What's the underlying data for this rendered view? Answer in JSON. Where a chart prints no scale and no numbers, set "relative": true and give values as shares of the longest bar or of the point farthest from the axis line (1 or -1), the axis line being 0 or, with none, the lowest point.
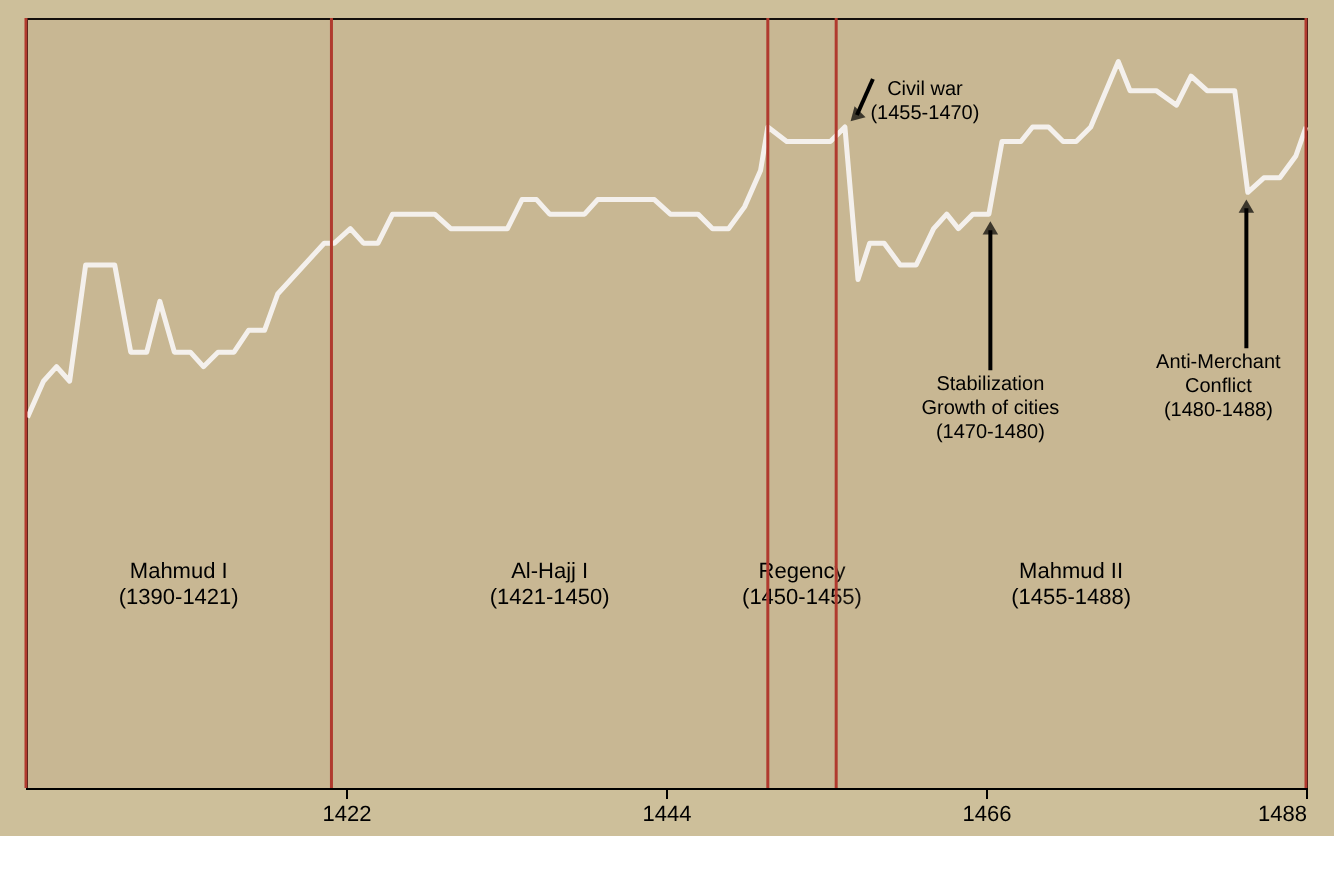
{
  "chart_data": {
    "type": "line",
    "relative": true,
    "x": [
      1400.1,
      1401.2,
      1402.1,
      1403.0,
      1404.1,
      1406.1,
      1407.2,
      1408.3,
      1409.2,
      1410.2,
      1411.3,
      1412.2,
      1413.2,
      1414.3,
      1415.3,
      1416.4,
      1417.3,
      1420.5,
      1421.2,
      1422.3,
      1423.2,
      1424.2,
      1425.2,
      1428.1,
      1429.2,
      1433.1,
      1434.1,
      1435.1,
      1436.0,
      1438.4,
      1439.3,
      1443.2,
      1444.3,
      1446.2,
      1447.2,
      1448.3,
      1449.4,
      1450.5,
      1451.0,
      1452.3,
      1455.3,
      1456.3,
      1457.2,
      1458.0,
      1459.0,
      1460.1,
      1461.2,
      1462.4,
      1463.3,
      1464.1,
      1465.1,
      1466.2,
      1467.1,
      1468.4,
      1469.2,
      1470.3,
      1471.3,
      1472.2,
      1473.2,
      1475.1,
      1475.9,
      1477.7,
      1479.1,
      1480.1,
      1481.2,
      1483.1,
      1484.0,
      1485.1,
      1486.2,
      1487.3,
      1488.0
    ],
    "series": [
      {
        "color": "#ffffff",
        "values": [
          0.51,
          0.56,
          0.58,
          0.56,
          0.72,
          0.72,
          0.6,
          0.6,
          0.67,
          0.6,
          0.6,
          0.58,
          0.6,
          0.6,
          0.63,
          0.63,
          0.68,
          0.75,
          0.75,
          0.77,
          0.75,
          0.75,
          0.79,
          0.79,
          0.77,
          0.77,
          0.81,
          0.81,
          0.79,
          0.79,
          0.81,
          0.81,
          0.79,
          0.79,
          0.77,
          0.77,
          0.8,
          0.85,
          0.91,
          0.89,
          0.89,
          0.91,
          0.7,
          0.75,
          0.75,
          0.72,
          0.72,
          0.77,
          0.79,
          0.77,
          0.79,
          0.79,
          0.89,
          0.89,
          0.91,
          0.91,
          0.89,
          0.89,
          0.91,
          1.0,
          0.96,
          0.96,
          0.94,
          0.98,
          0.96,
          0.96,
          0.82,
          0.84,
          0.84,
          0.87,
          0.91
        ]
      }
    ],
    "xlim": [
      1400,
      1488
    ],
    "xticks": [
      1422,
      1444,
      1466,
      1488
    ],
    "tick_labels": "x",
    "grid": false,
    "marker": "none",
    "line_style": "solid",
    "ref_lines": [
      {
        "axis": "x",
        "value": 1400,
        "color": "#b03a2e"
      },
      {
        "axis": "x",
        "value": 1421,
        "color": "#b03a2e"
      },
      {
        "axis": "x",
        "value": 1451,
        "color": "#b03a2e"
      },
      {
        "axis": "x",
        "value": 1455.7,
        "color": "#b03a2e"
      },
      {
        "axis": "x",
        "value": 1488,
        "color": "#b03a2e"
      }
    ],
    "bands": [
      {
        "axis": "x",
        "from": 1400,
        "to": 1421,
        "label": "Mahmud I\n(1390-1421)"
      },
      {
        "axis": "x",
        "from": 1421,
        "to": 1451,
        "label": "Al-Hajj I\n(1421-1450)"
      },
      {
        "axis": "x",
        "from": 1451,
        "to": 1455.7,
        "label": "Regency\n(1450-1455)"
      },
      {
        "axis": "x",
        "from": 1455.7,
        "to": 1488,
        "label": "Mahmud II\n(1455-1488)"
      }
    ],
    "annotations": [
      {
        "text": "Civil war\n(1455-1470)",
        "x": 1456.3,
        "y": 0.91
      },
      {
        "text": "Stabilization\nGrowth of cities\n(1470-1480)",
        "x": 1466.3,
        "y": 0.79
      },
      {
        "text": "Anti-Merchant\nConflict\n(1480-1488)",
        "x": 1483.9,
        "y": 0.82
      }
    ]
  }
}
